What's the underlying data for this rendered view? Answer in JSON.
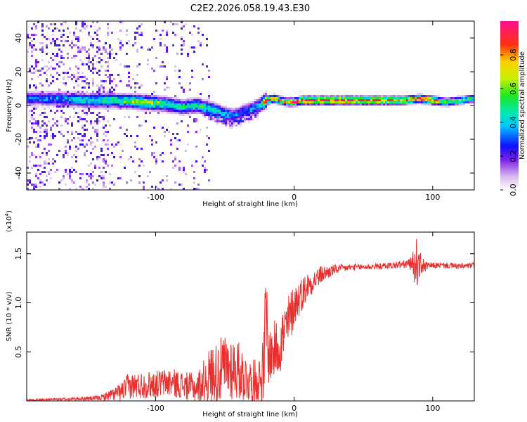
{
  "title": "C2E2.2026.058.19.43.E30",
  "chart_data": [
    {
      "type": "heatmap",
      "name": "spectrogram",
      "xlabel": "Height of straight line (km)",
      "ylabel": "Frequency (Hz)",
      "xlim": [
        -193,
        130
      ],
      "ylim": [
        -50,
        50
      ],
      "xticks": [
        -100,
        0,
        100
      ],
      "xtick_labels": [
        "-100",
        "0",
        "100"
      ],
      "yticks": [
        -40,
        -20,
        0,
        20,
        40
      ],
      "ytick_labels": [
        "-40",
        "-20",
        "0",
        "20",
        "40"
      ],
      "colorbar": {
        "label": "Normalized spectral amplitude",
        "range": [
          0,
          1
        ],
        "ticks": [
          0.0,
          0.2,
          0.4,
          0.6,
          0.8
        ],
        "tick_labels": [
          "0.0",
          "0.2",
          "0.4",
          "0.6",
          "0.8"
        ]
      },
      "ridge": {
        "x": [
          -193,
          -170,
          -150,
          -130,
          -110,
          -95,
          -80,
          -70,
          -60,
          -50,
          -45,
          -40,
          -35,
          -30,
          -25,
          -20,
          -15,
          -10,
          -5,
          0,
          5,
          10,
          20,
          40,
          60,
          80,
          90,
          100,
          110,
          130
        ],
        "freq": [
          4,
          4,
          3,
          3,
          2,
          1,
          -1,
          0,
          -2,
          -5,
          -6,
          -5,
          -3,
          -2,
          0,
          3,
          4,
          3,
          2,
          2,
          3,
          3,
          3,
          3,
          3,
          3,
          4,
          3,
          2,
          4
        ],
        "amplitude": [
          0.3,
          0.35,
          0.45,
          0.5,
          0.65,
          0.55,
          0.45,
          0.5,
          0.45,
          0.4,
          0.35,
          0.3,
          0.3,
          0.35,
          0.4,
          0.85,
          0.8,
          0.7,
          0.75,
          0.9,
          0.9,
          0.92,
          0.95,
          0.97,
          0.9,
          0.8,
          0.9,
          0.85,
          0.6,
          0.5
        ]
      }
    },
    {
      "type": "line",
      "name": "snr",
      "xlabel": "Height of straight line (km)",
      "ylabel": "SNR (10 * v/v)",
      "multiplier_label": "(x10",
      "multiplier_exp": "4",
      "multiplier_close": ")",
      "xlim": [
        -193,
        130
      ],
      "ylim": [
        0,
        17200
      ],
      "xticks": [
        -100,
        0,
        100
      ],
      "xtick_labels": [
        "-100",
        "0",
        "100"
      ],
      "yticks": [
        5000,
        10000,
        15000
      ],
      "ytick_labels": [
        "0.5",
        "1.0",
        "1.5"
      ],
      "color": "#e8312f",
      "series": [
        {
          "name": "SNR envelope",
          "x": [
            -193,
            -160,
            -140,
            -125,
            -120,
            -110,
            -100,
            -90,
            -80,
            -70,
            -65,
            -60,
            -55,
            -50,
            -45,
            -40,
            -35,
            -30,
            -25,
            -22,
            -20,
            -19,
            -15,
            -10,
            -5,
            0,
            5,
            10,
            20,
            30,
            40,
            60,
            70,
            80,
            85,
            88,
            90,
            95,
            100,
            110,
            120,
            130
          ],
          "mean": [
            100,
            200,
            300,
            900,
            1500,
            1600,
            1700,
            1900,
            1600,
            1300,
            2000,
            2700,
            2900,
            3300,
            3500,
            3100,
            2300,
            1900,
            2100,
            3200,
            9000,
            4500,
            5000,
            6000,
            7500,
            9800,
            10800,
            11800,
            12900,
            13400,
            13600,
            13700,
            13800,
            13900,
            14000,
            14000,
            13900,
            13700,
            13800,
            13800,
            13700,
            13800
          ],
          "noise": [
            80,
            150,
            250,
            900,
            1300,
            1400,
            1400,
            1500,
            1400,
            1500,
            2300,
            3000,
            3300,
            3500,
            3500,
            3000,
            2500,
            2200,
            2800,
            3500,
            8000,
            2800,
            3000,
            3200,
            3200,
            2200,
            1800,
            1400,
            900,
            500,
            350,
            300,
            350,
            450,
            700,
            2800,
            1500,
            500,
            300,
            300,
            300,
            300
          ]
        }
      ]
    }
  ]
}
